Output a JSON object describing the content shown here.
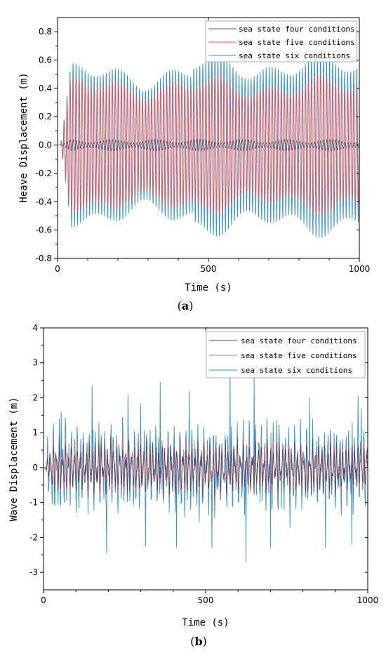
{
  "chart_data": [
    {
      "type": "line",
      "panel_label": "a",
      "xlabel": "Time (s)",
      "ylabel": "Heave Displacement (m)",
      "xlim": [
        0,
        1000
      ],
      "ylim": [
        -0.8,
        0.9
      ],
      "xticks": [
        0,
        500,
        1000
      ],
      "yticks": [
        -0.8,
        -0.6,
        -0.4,
        -0.2,
        0.0,
        0.2,
        0.4,
        0.6,
        0.8
      ],
      "ytick_labels": [
        "-0.8",
        "-0.6",
        "-0.4",
        "-0.2",
        "0.0",
        "0.2",
        "0.4",
        "0.6",
        "0.8"
      ],
      "legend_position": "top-right",
      "series": [
        {
          "name": "sea state four conditions",
          "color": "#55556a",
          "amplitude": 0.04,
          "period": 10
        },
        {
          "name": "sea state five conditions",
          "color": "#e25a5a",
          "amplitude": 0.5,
          "period": 10
        },
        {
          "name": "sea state six conditions",
          "color": "#3a92dc",
          "amplitude": 0.6,
          "period": 10
        }
      ]
    },
    {
      "type": "line",
      "panel_label": "b",
      "xlabel": "Time (s)",
      "ylabel": "Wave Displacement (m)",
      "xlim": [
        0,
        1000
      ],
      "ylim": [
        -3.5,
        4
      ],
      "xticks": [
        0,
        500,
        1000
      ],
      "yticks": [
        -3,
        -2,
        -1,
        0,
        1,
        2,
        3,
        4
      ],
      "ytick_labels": [
        "-3",
        "-2",
        "-1",
        "0",
        "1",
        "2",
        "3",
        "4"
      ],
      "legend_position": "top-right",
      "series": [
        {
          "name": "sea state four conditions",
          "color": "#4a4a66",
          "amplitude": 0.8
        },
        {
          "name": "sea state five conditions",
          "color": "#e26a6a",
          "amplitude": 0.85
        },
        {
          "name": "sea state six conditions",
          "color": "#3a92dc",
          "amplitude": 1.3,
          "peaks": [
            {
              "x": 12,
              "y": 0.9
            },
            {
              "x": 55,
              "y": 1.6
            },
            {
              "x": 150,
              "y": 2.35
            },
            {
              "x": 195,
              "y": -2.45
            },
            {
              "x": 260,
              "y": 2.1
            },
            {
              "x": 315,
              "y": -2.25
            },
            {
              "x": 360,
              "y": 2.45
            },
            {
              "x": 410,
              "y": -2.3
            },
            {
              "x": 450,
              "y": 2.2
            },
            {
              "x": 520,
              "y": -2.3
            },
            {
              "x": 575,
              "y": 3.1
            },
            {
              "x": 625,
              "y": -2.7
            },
            {
              "x": 650,
              "y": 2.75
            },
            {
              "x": 700,
              "y": -2.3
            },
            {
              "x": 820,
              "y": 2.0
            },
            {
              "x": 870,
              "y": -2.3
            },
            {
              "x": 950,
              "y": -2.2
            },
            {
              "x": 980,
              "y": 1.7
            }
          ]
        }
      ]
    }
  ]
}
